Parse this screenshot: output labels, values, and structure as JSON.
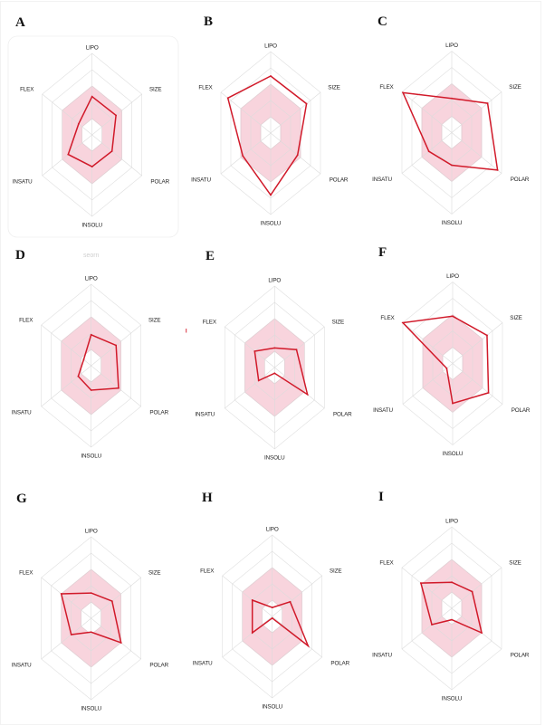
{
  "figure": {
    "axis_order_note": "LIPO, SIZE, POLAR, INSOLU, INSATU, FLEX",
    "faint_text": "seorn"
  },
  "colors": {
    "series": "#d11a2a",
    "optimal_fill": "#f8d4dd",
    "optimal_edge": "#eaaab9",
    "grid": "#dcdcdc",
    "stray_mark": "#d9303f"
  },
  "chart_data": [
    {
      "panel": "A",
      "type": "radar",
      "axes": [
        "LIPO",
        "SIZE",
        "POLAR",
        "INSOLU",
        "INSATU",
        "FLEX"
      ],
      "values": [
        2.35,
        2.4,
        2.0,
        1.95,
        2.4,
        1.35
      ],
      "range": [
        0,
        5
      ],
      "rings": 5,
      "optimal_range": [
        1,
        3
      ]
    },
    {
      "panel": "B",
      "type": "radar",
      "axes": [
        "LIPO",
        "SIZE",
        "POLAR",
        "INSOLU",
        "INSATU",
        "FLEX"
      ],
      "values": [
        3.5,
        3.6,
        2.7,
        3.8,
        2.8,
        4.3
      ],
      "range": [
        0,
        5
      ],
      "rings": 5,
      "optimal_range": [
        1,
        3
      ]
    },
    {
      "panel": "C",
      "type": "radar",
      "axes": [
        "LIPO",
        "SIZE",
        "POLAR",
        "INSOLU",
        "INSATU",
        "FLEX"
      ],
      "values": [
        2.1,
        3.6,
        4.6,
        2.0,
        2.3,
        4.9
      ],
      "range": [
        0,
        5
      ],
      "rings": 5,
      "optimal_range": [
        1,
        3
      ]
    },
    {
      "panel": "D",
      "type": "radar",
      "axes": [
        "LIPO",
        "SIZE",
        "POLAR",
        "INSOLU",
        "INSATU",
        "FLEX"
      ],
      "values": [
        1.9,
        2.5,
        2.75,
        1.5,
        1.3,
        0.75
      ],
      "range": [
        0,
        5
      ],
      "rings": 5,
      "optimal_range": [
        1,
        3
      ]
    },
    {
      "panel": "E",
      "type": "radar",
      "axes": [
        "LIPO",
        "SIZE",
        "POLAR",
        "INSOLU",
        "INSATU",
        "FLEX"
      ],
      "values": [
        1.2,
        2.2,
        3.3,
        0.35,
        1.6,
        2.0
      ],
      "range": [
        0,
        5
      ],
      "rings": 5,
      "optimal_range": [
        1,
        3
      ]
    },
    {
      "panel": "F",
      "type": "radar",
      "axes": [
        "LIPO",
        "SIZE",
        "POLAR",
        "INSOLU",
        "INSATU",
        "FLEX"
      ],
      "values": [
        2.9,
        3.45,
        3.6,
        2.45,
        0.6,
        5.0
      ],
      "range": [
        0,
        5
      ],
      "rings": 5,
      "optimal_range": [
        1,
        3
      ]
    },
    {
      "panel": "G",
      "type": "radar",
      "axes": [
        "LIPO",
        "SIZE",
        "POLAR",
        "INSOLU",
        "INSATU",
        "FLEX"
      ],
      "values": [
        1.55,
        2.1,
        3.0,
        0.85,
        2.0,
        3.0
      ],
      "range": [
        0,
        5
      ],
      "rings": 5,
      "optimal_range": [
        1,
        3
      ]
    },
    {
      "panel": "H",
      "type": "radar",
      "axes": [
        "LIPO",
        "SIZE",
        "POLAR",
        "INSOLU",
        "INSATU",
        "FLEX"
      ],
      "values": [
        0.55,
        1.8,
        3.6,
        0.1,
        2.0,
        2.0
      ],
      "range": [
        0,
        5
      ],
      "rings": 5,
      "optimal_range": [
        1,
        3
      ]
    },
    {
      "panel": "I",
      "type": "radar",
      "axes": [
        "LIPO",
        "SIZE",
        "POLAR",
        "INSOLU",
        "INSATU",
        "FLEX"
      ],
      "values": [
        1.6,
        2.05,
        3.0,
        0.7,
        2.0,
        3.1
      ],
      "range": [
        0,
        5
      ],
      "rings": 5,
      "optimal_range": [
        1,
        3
      ]
    }
  ]
}
